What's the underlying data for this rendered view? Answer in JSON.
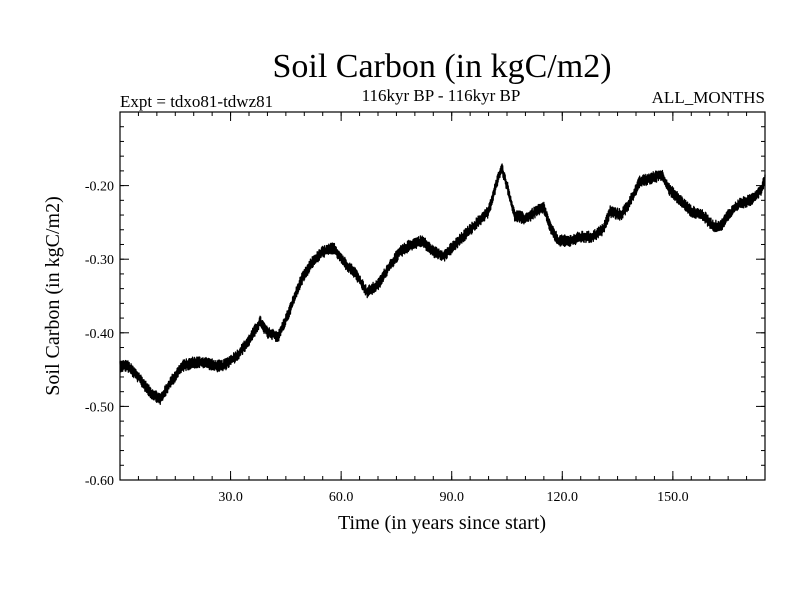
{
  "chart_data": {
    "type": "line",
    "title": "Soil Carbon (in kgC/m2)",
    "subtitle_left": "Expt = tdxo81-tdwz81",
    "subtitle_center": "116kyr BP - 116kyr BP",
    "subtitle_right": "ALL_MONTHS",
    "xlabel": "Time (in years since start)",
    "ylabel": "Soil Carbon (in kgC/m2)",
    "xlim": [
      0,
      175
    ],
    "ylim": [
      -0.6,
      -0.1
    ],
    "x_ticks": [
      30,
      60,
      90,
      120,
      150
    ],
    "x_tick_labels": [
      "30.0",
      "60.0",
      "90.0",
      "120.0",
      "150.0"
    ],
    "y_ticks": [
      -0.6,
      -0.5,
      -0.4,
      -0.3,
      -0.2
    ],
    "y_tick_labels": [
      "-0.60",
      "-0.50",
      "-0.40",
      "-0.30",
      "-0.20"
    ],
    "x_minor_step": 5,
    "y_minor_step": 0.02,
    "series": [
      {
        "name": "Soil Carbon",
        "color": "#000000",
        "noise_amplitude": 0.008,
        "trend_x": [
          0,
          2,
          5,
          8,
          11,
          14,
          17,
          20,
          23,
          26,
          28,
          32,
          35,
          38,
          40,
          43,
          46,
          49,
          52,
          55,
          58,
          61,
          64,
          67,
          70,
          73,
          76,
          79,
          82,
          85,
          88,
          91,
          94,
          97,
          100,
          102,
          103.5,
          105,
          107,
          110,
          113,
          115,
          117,
          119,
          122,
          125,
          128,
          131,
          133,
          136,
          138,
          141,
          144,
          147,
          149,
          152,
          155,
          158,
          161,
          163,
          165,
          168,
          171,
          174,
          175
        ],
        "trend_y": [
          -0.445,
          -0.445,
          -0.46,
          -0.48,
          -0.49,
          -0.465,
          -0.445,
          -0.44,
          -0.44,
          -0.445,
          -0.445,
          -0.43,
          -0.41,
          -0.385,
          -0.4,
          -0.405,
          -0.37,
          -0.33,
          -0.305,
          -0.29,
          -0.285,
          -0.305,
          -0.32,
          -0.345,
          -0.335,
          -0.31,
          -0.29,
          -0.28,
          -0.275,
          -0.29,
          -0.295,
          -0.28,
          -0.265,
          -0.25,
          -0.235,
          -0.2,
          -0.175,
          -0.2,
          -0.24,
          -0.245,
          -0.235,
          -0.23,
          -0.26,
          -0.275,
          -0.275,
          -0.27,
          -0.27,
          -0.26,
          -0.235,
          -0.24,
          -0.225,
          -0.195,
          -0.19,
          -0.185,
          -0.205,
          -0.22,
          -0.235,
          -0.24,
          -0.255,
          -0.255,
          -0.24,
          -0.225,
          -0.22,
          -0.205,
          -0.19
        ]
      }
    ]
  }
}
